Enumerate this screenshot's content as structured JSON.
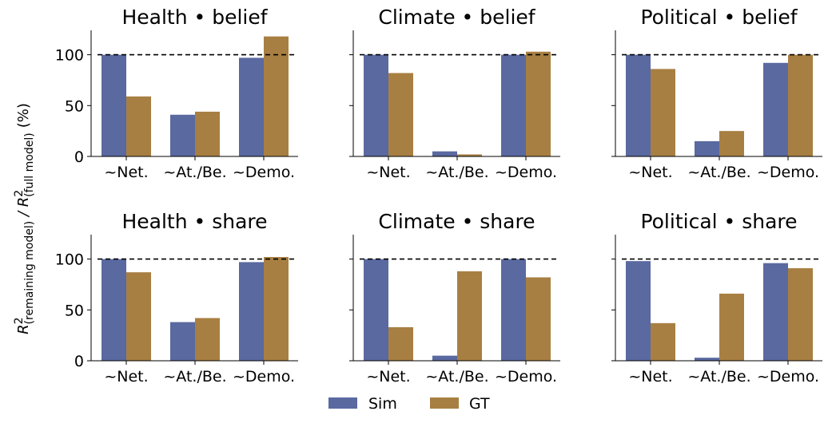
{
  "figure": {
    "ylabel_main": "R",
    "ylabel_remaining_sub": "(remaining model)",
    "ylabel_slash": " / R",
    "ylabel_full_sub": "(full model)",
    "ylabel_unit": "(%)",
    "ylabel_exponent": "2"
  },
  "legend": {
    "placement": "bottom-center",
    "entries": [
      {
        "label": "Sim",
        "color": "#5a69a0"
      },
      {
        "label": "GT",
        "color": "#a87f42"
      }
    ]
  },
  "chart_data": [
    {
      "type": "bar",
      "title": "Health • belief",
      "categories": [
        "~Net.",
        "~At./Be.",
        "~Demo."
      ],
      "series": [
        {
          "name": "Sim",
          "values": [
            100,
            41,
            97
          ]
        },
        {
          "name": "GT",
          "values": [
            59,
            44,
            118
          ]
        }
      ],
      "ylim": [
        0,
        124
      ],
      "yticks": [
        0,
        50,
        100
      ],
      "reference_line": 100
    },
    {
      "type": "bar",
      "title": "Climate • belief",
      "categories": [
        "~Net.",
        "~At./Be.",
        "~Demo."
      ],
      "series": [
        {
          "name": "Sim",
          "values": [
            100,
            5,
            100
          ]
        },
        {
          "name": "GT",
          "values": [
            82,
            2,
            103
          ]
        }
      ],
      "ylim": [
        0,
        124
      ],
      "yticks": [
        0,
        50,
        100
      ],
      "reference_line": 100
    },
    {
      "type": "bar",
      "title": "Political • belief",
      "categories": [
        "~Net.",
        "~At./Be.",
        "~Demo."
      ],
      "series": [
        {
          "name": "Sim",
          "values": [
            100,
            15,
            92
          ]
        },
        {
          "name": "GT",
          "values": [
            86,
            25,
            100
          ]
        }
      ],
      "ylim": [
        0,
        124
      ],
      "yticks": [
        0,
        50,
        100
      ],
      "reference_line": 100
    },
    {
      "type": "bar",
      "title": "Health • share",
      "categories": [
        "~Net.",
        "~At./Be.",
        "~Demo."
      ],
      "series": [
        {
          "name": "Sim",
          "values": [
            100,
            38,
            97
          ]
        },
        {
          "name": "GT",
          "values": [
            87,
            42,
            102
          ]
        }
      ],
      "ylim": [
        0,
        124
      ],
      "yticks": [
        0,
        50,
        100
      ],
      "reference_line": 100
    },
    {
      "type": "bar",
      "title": "Climate • share",
      "categories": [
        "~Net.",
        "~At./Be.",
        "~Demo."
      ],
      "series": [
        {
          "name": "Sim",
          "values": [
            100,
            5,
            100
          ]
        },
        {
          "name": "GT",
          "values": [
            33,
            88,
            82
          ]
        }
      ],
      "ylim": [
        0,
        124
      ],
      "yticks": [
        0,
        50,
        100
      ],
      "reference_line": 100
    },
    {
      "type": "bar",
      "title": "Political • share",
      "categories": [
        "~Net.",
        "~At./Be.",
        "~Demo."
      ],
      "series": [
        {
          "name": "Sim",
          "values": [
            98,
            3,
            96
          ]
        },
        {
          "name": "GT",
          "values": [
            37,
            66,
            91
          ]
        }
      ],
      "ylim": [
        0,
        124
      ],
      "yticks": [
        0,
        50,
        100
      ],
      "reference_line": 100
    }
  ]
}
